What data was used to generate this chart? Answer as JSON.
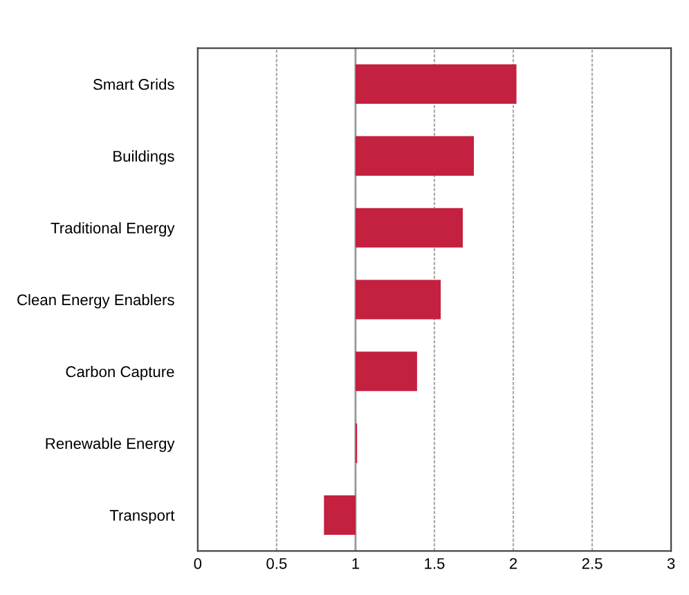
{
  "chart_data": {
    "type": "bar",
    "orientation": "horizontal",
    "categories": [
      "Smart Grids",
      "Buildings",
      "Traditional Energy",
      "Clean Energy Enablers",
      "Carbon Capture",
      "Renewable Energy",
      "Transport"
    ],
    "base": [
      1,
      1,
      1,
      1,
      1,
      1,
      1
    ],
    "values": [
      1.02,
      0.75,
      0.68,
      0.54,
      0.39,
      0.01,
      -0.2
    ],
    "color": "#c4203f",
    "xlim": [
      0,
      3
    ],
    "xticks": [
      0,
      0.5,
      1,
      1.5,
      2,
      2.5,
      3
    ],
    "grid": "x",
    "ref_lines": [
      {
        "axis": "x",
        "value": 1,
        "color": "#999999"
      }
    ]
  }
}
